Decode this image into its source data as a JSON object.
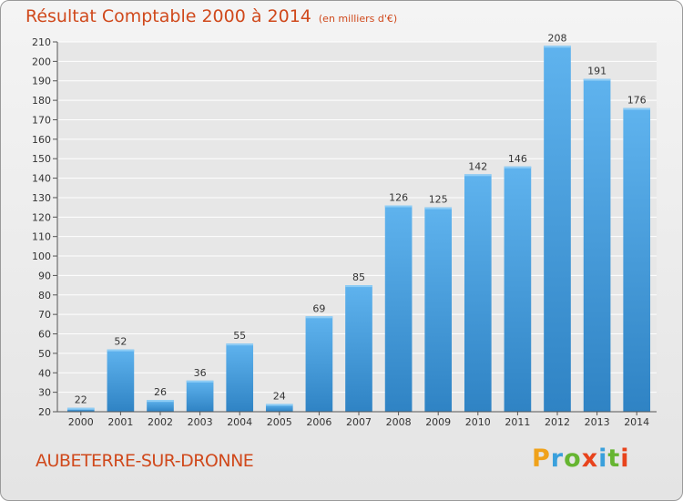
{
  "chart_data": {
    "type": "bar",
    "title": "Résultat Comptable 2000 à 2014",
    "subtitle": "(en milliers d'€)",
    "categories": [
      "2000",
      "2001",
      "2002",
      "2003",
      "2004",
      "2005",
      "2006",
      "2007",
      "2008",
      "2009",
      "2010",
      "2011",
      "2012",
      "2013",
      "2014"
    ],
    "values": [
      22,
      52,
      26,
      36,
      55,
      24,
      69,
      85,
      126,
      125,
      142,
      146,
      208,
      191,
      176
    ],
    "ylim": [
      20,
      210
    ],
    "ystep": 10,
    "xlabel": "",
    "ylabel": "",
    "grid": true
  },
  "commune": "AUBETERRE-SUR-DRONNE",
  "logo": {
    "letters": [
      "P",
      "r",
      "o",
      "x",
      "i",
      "t",
      "i"
    ],
    "colors": [
      "#f0a21a",
      "#3aa0dc",
      "#66b531",
      "#e8431c",
      "#3aa0dc",
      "#66b531",
      "#e8431c"
    ]
  },
  "colors": {
    "bar": "#3a93d3",
    "bar_light": "#62b4ec",
    "grid": "#ffffff",
    "title": "#d0491c"
  }
}
